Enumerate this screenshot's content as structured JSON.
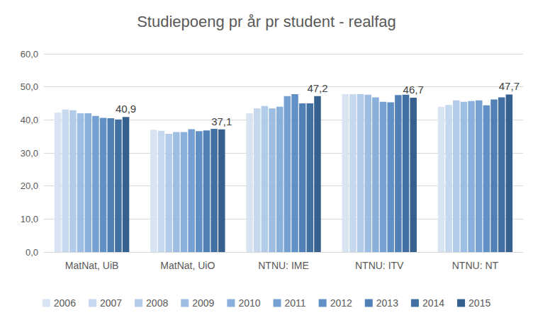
{
  "chart_data": {
    "type": "bar",
    "title": "Studiepoeng pr år pr student - realfag",
    "categories": [
      "MatNat, UiB",
      "MatNat, UiO",
      "NTNU: IME",
      "NTNU: ITV",
      "NTNU: NT"
    ],
    "series": [
      {
        "name": "2006",
        "color": "#d9e4f2",
        "values": [
          42.2,
          37.0,
          42.0,
          47.8,
          44.0
        ]
      },
      {
        "name": "2007",
        "color": "#c6d8ee",
        "values": [
          43.1,
          36.7,
          43.5,
          47.8,
          44.5
        ]
      },
      {
        "name": "2008",
        "color": "#b2cbe8",
        "values": [
          42.9,
          35.8,
          44.2,
          47.8,
          45.9
        ]
      },
      {
        "name": "2009",
        "color": "#9ebde2",
        "values": [
          42.0,
          36.3,
          43.5,
          47.6,
          45.5
        ]
      },
      {
        "name": "2010",
        "color": "#89afdb",
        "values": [
          42.0,
          36.3,
          44.0,
          46.8,
          45.7
        ]
      },
      {
        "name": "2011",
        "color": "#74a0d2",
        "values": [
          41.2,
          37.2,
          47.2,
          45.5,
          45.9
        ]
      },
      {
        "name": "2012",
        "color": "#6190c6",
        "values": [
          40.6,
          36.6,
          47.8,
          45.3,
          44.4
        ]
      },
      {
        "name": "2013",
        "color": "#5080b6",
        "values": [
          40.5,
          36.8,
          45.0,
          47.5,
          46.2
        ]
      },
      {
        "name": "2014",
        "color": "#4370a3",
        "values": [
          40.1,
          37.3,
          45.0,
          47.6,
          46.8
        ]
      },
      {
        "name": "2015",
        "color": "#36608e",
        "values": [
          40.9,
          37.1,
          47.2,
          46.7,
          47.7
        ],
        "value_labels": [
          "40,9",
          "37,1",
          "47,2",
          "46,7",
          "47,7"
        ],
        "data_labels": true
      }
    ],
    "ylim": [
      0,
      60
    ],
    "yticks": [
      {
        "value": 0,
        "label": "0,0"
      },
      {
        "value": 10,
        "label": "10,0"
      },
      {
        "value": 20,
        "label": "20,0"
      },
      {
        "value": 30,
        "label": "30,0"
      },
      {
        "value": 40,
        "label": "40,0"
      },
      {
        "value": 50,
        "label": "50,0"
      },
      {
        "value": 60,
        "label": "60,0"
      }
    ],
    "grid": true,
    "legend": "bottom"
  }
}
